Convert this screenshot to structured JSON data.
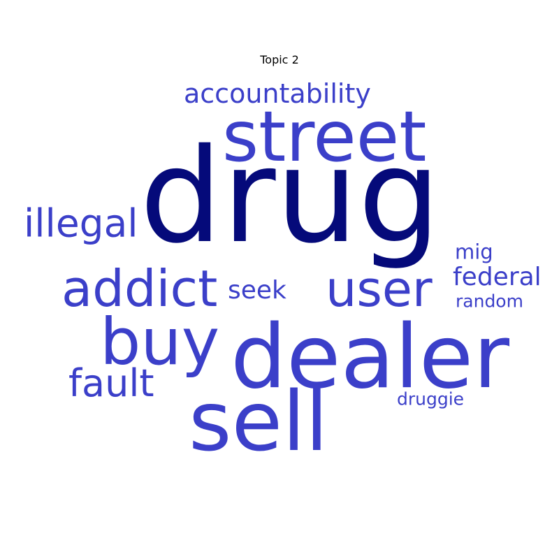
{
  "title": "Topic 2",
  "colors": {
    "primary_word": "#050a7a",
    "secondary_word": "#3b3fc9",
    "background": "#ffffff"
  },
  "words": [
    {
      "text": "drug",
      "weight": 1.0,
      "color": "#050a7a"
    },
    {
      "text": "street",
      "weight": 0.55,
      "color": "#3b3fc9"
    },
    {
      "text": "dealer",
      "weight": 0.72,
      "color": "#3b3fc9"
    },
    {
      "text": "sell",
      "weight": 0.68,
      "color": "#3b3fc9"
    },
    {
      "text": "buy",
      "weight": 0.55,
      "color": "#3b3fc9"
    },
    {
      "text": "addict",
      "weight": 0.45,
      "color": "#3b3fc9"
    },
    {
      "text": "user",
      "weight": 0.42,
      "color": "#3b3fc9"
    },
    {
      "text": "illegal",
      "weight": 0.3,
      "color": "#3b3fc9"
    },
    {
      "text": "accountability",
      "weight": 0.22,
      "color": "#3b3fc9"
    },
    {
      "text": "fault",
      "weight": 0.3,
      "color": "#3b3fc9"
    },
    {
      "text": "seek",
      "weight": 0.2,
      "color": "#3b3fc9"
    },
    {
      "text": "federal",
      "weight": 0.2,
      "color": "#3b3fc9"
    },
    {
      "text": "mig",
      "weight": 0.16,
      "color": "#3b3fc9"
    },
    {
      "text": "random",
      "weight": 0.14,
      "color": "#3b3fc9"
    },
    {
      "text": "druggie",
      "weight": 0.14,
      "color": "#3b3fc9"
    }
  ]
}
